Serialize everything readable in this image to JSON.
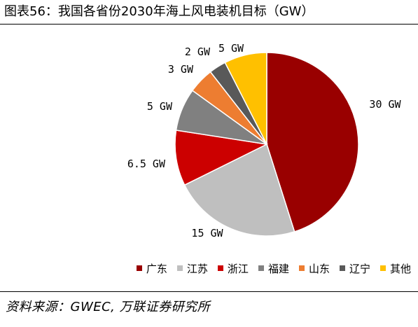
{
  "header": {
    "title": "图表56：我国各省份2030年海上风电装机目标（GW）"
  },
  "footer": {
    "source": "资料来源：GWEC, 万联证券研究所"
  },
  "chart_data": {
    "type": "pie",
    "title": "图表56：我国各省份2030年海上风电装机目标（GW）",
    "categories": [
      "广东",
      "江苏",
      "浙江",
      "福建",
      "山东",
      "辽宁",
      "其他"
    ],
    "values": [
      30,
      15,
      6.5,
      5,
      3,
      2,
      5
    ],
    "labels": [
      "30 GW",
      "15 GW",
      "6.5 GW",
      "5 GW",
      "3 GW",
      "2 GW",
      "5 GW"
    ],
    "colors": [
      "#990000",
      "#BFBFBF",
      "#CC0000",
      "#808080",
      "#ED7D31",
      "#595959",
      "#FFC000"
    ],
    "legend_position": "bottom"
  }
}
